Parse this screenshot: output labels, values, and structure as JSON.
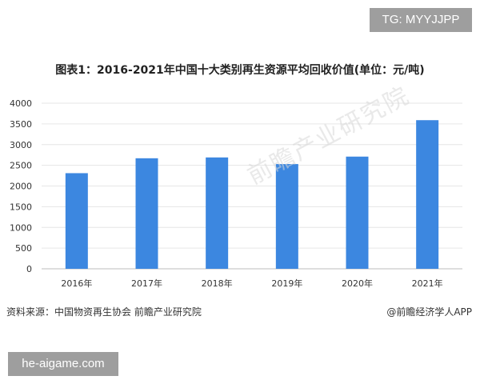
{
  "tags": {
    "top": "TG: MYYJJPP",
    "bottom": "he-aigame.com"
  },
  "watermark": "前瞻产业研究院",
  "footer": {
    "source": "资料来源：中国物资再生协会 前瞻产业研究院",
    "brand": "@前瞻经济学人APP"
  },
  "chart_data": {
    "type": "bar",
    "title": "图表1：2016-2021年中国十大类别再生资源平均回收价值(单位：元/吨)",
    "categories": [
      "2016年",
      "2017年",
      "2018年",
      "2019年",
      "2020年",
      "2021年"
    ],
    "values": [
      2310,
      2670,
      2690,
      2530,
      2710,
      3590
    ],
    "ylim": [
      0,
      4000
    ],
    "yticks": [
      0,
      500,
      1000,
      1500,
      2000,
      2500,
      3000,
      3500,
      4000
    ],
    "grid": true,
    "bar_color": "#3c87e0",
    "xlabel": "",
    "ylabel": ""
  }
}
